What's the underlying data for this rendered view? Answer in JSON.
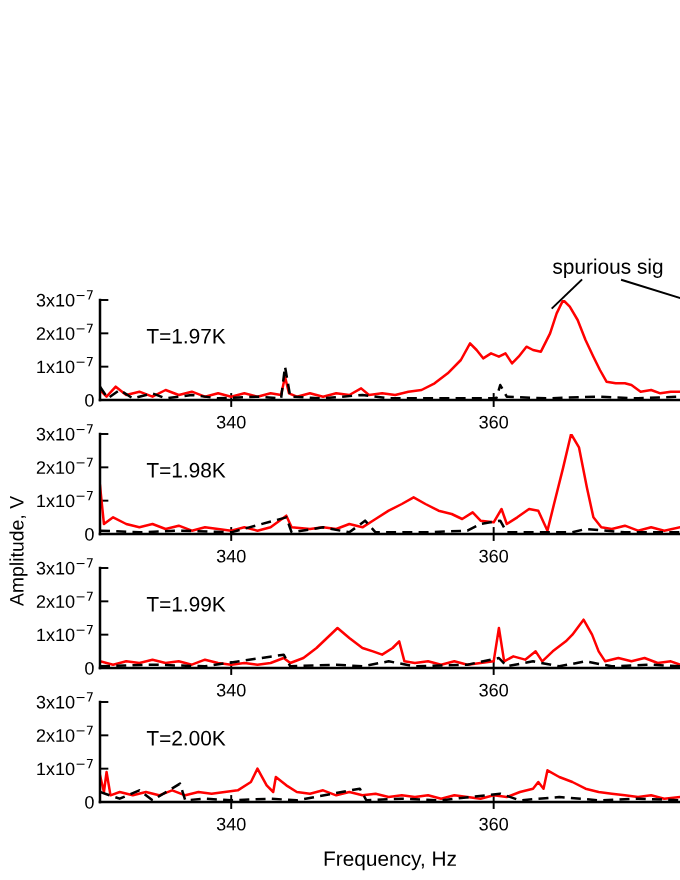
{
  "chart_data": [
    {
      "type": "line",
      "xlim": [
        330,
        374.2
      ],
      "ylim": [
        0,
        3e-07
      ],
      "xticks": [
        340,
        360
      ],
      "yticks": [
        {
          "value": 0,
          "label": "0"
        },
        {
          "value": 1e-07,
          "label": "1x10$^{−7}$"
        },
        {
          "value": 2e-07,
          "label": "2x10$^{−7}$"
        },
        {
          "value": 3e-07,
          "label": "3x10$^{−7}$"
        }
      ],
      "grid": false,
      "annotations": [
        "T=1.97K",
        "spurious sig"
      ],
      "series": [
        {
          "color": "#ff0000",
          "line_style": "solid",
          "x": [
            330,
            330.5,
            331.2,
            332,
            333,
            334,
            335,
            336,
            337,
            338,
            339,
            340,
            341,
            342,
            343,
            343.8,
            344.1,
            344.4,
            345,
            346,
            347,
            348,
            349,
            349.9,
            350.5,
            351.5,
            352.5,
            353.5,
            354.5,
            355.5,
            356.5,
            357.5,
            358.2,
            358.7,
            359.2,
            359.8,
            360.4,
            360.9,
            361.4,
            361.9,
            362.5,
            363,
            363.6,
            364.3,
            364.8,
            365.3,
            365.8,
            366.4,
            367,
            367.6,
            368.1,
            368.6,
            369.3,
            370,
            370.5,
            371.2,
            372,
            372.7,
            373.5,
            374.2
          ],
          "values": [
            3e-08,
            1e-08,
            4e-08,
            1.5e-08,
            2.5e-08,
            1e-08,
            3e-08,
            1.5e-08,
            2.5e-08,
            1e-08,
            2e-08,
            1e-08,
            2e-08,
            1e-08,
            2e-08,
            1.5e-08,
            7e-08,
            2e-08,
            1e-08,
            2e-08,
            1e-08,
            2e-08,
            1.5e-08,
            3.5e-08,
            1.5e-08,
            2e-08,
            1.5e-08,
            2.5e-08,
            3e-08,
            5e-08,
            8e-08,
            1.2e-07,
            1.7e-07,
            1.5e-07,
            1.25e-07,
            1.4e-07,
            1.3e-07,
            1.4e-07,
            1.1e-07,
            1.3e-07,
            1.6e-07,
            1.5e-07,
            1.45e-07,
            2e-07,
            2.6e-07,
            3e-07,
            2.8e-07,
            2.4e-07,
            1.8e-07,
            1.3e-07,
            9e-08,
            5.5e-08,
            5e-08,
            5e-08,
            4.5e-08,
            2.5e-08,
            3e-08,
            2e-08,
            2.5e-08,
            2.5e-08
          ]
        },
        {
          "color": "#000000",
          "line_style": "dashed",
          "x": [
            330,
            330.6,
            331.5,
            332.5,
            334,
            335,
            337,
            339,
            342,
            343.8,
            344.1,
            344.5,
            347,
            350,
            352,
            356,
            360.2,
            360.5,
            361,
            364,
            368,
            371,
            374.2
          ],
          "values": [
            4e-08,
            5e-09,
            3e-08,
            5e-09,
            2e-08,
            5e-09,
            1.5e-08,
            5e-09,
            1e-08,
            5e-09,
            1e-07,
            1e-08,
            5e-09,
            1.5e-08,
            5e-09,
            5e-09,
            5e-09,
            4.5e-08,
            1e-08,
            5e-09,
            1e-08,
            5e-09,
            1e-08
          ]
        }
      ]
    },
    {
      "type": "line",
      "xlim": [
        330,
        374.2
      ],
      "ylim": [
        0,
        3e-07
      ],
      "xticks": [
        340,
        360
      ],
      "yticks": [
        {
          "value": 0,
          "label": "0"
        },
        {
          "value": 1e-07,
          "label": "1x10$^{−7}$"
        },
        {
          "value": 2e-07,
          "label": "2x10$^{−7}$"
        },
        {
          "value": 3e-07,
          "label": "3x10$^{−7}$"
        }
      ],
      "ylabel": "Amplitude, V",
      "grid": false,
      "annotations": [
        "T=1.98K"
      ],
      "series": [
        {
          "color": "#ff0000",
          "line_style": "solid",
          "x": [
            330,
            330.3,
            331,
            332,
            333,
            334,
            335,
            336,
            337,
            338,
            339,
            340,
            341,
            342,
            343,
            344.2,
            344.6,
            346,
            347,
            348,
            349,
            350,
            351,
            352,
            353,
            353.9,
            354.8,
            355.8,
            356.8,
            357.6,
            358.4,
            359,
            360,
            360.6,
            361,
            361.8,
            362.7,
            363.4,
            364.1,
            364.6,
            365.3,
            365.9,
            366.5,
            367.1,
            367.6,
            368.2,
            369,
            370,
            371,
            372,
            373,
            374.2
          ],
          "values": [
            1.45e-07,
            3e-08,
            5e-08,
            3e-08,
            2e-08,
            3e-08,
            1.5e-08,
            2.5e-08,
            1e-08,
            2e-08,
            1.5e-08,
            1e-08,
            2e-08,
            1e-08,
            2e-08,
            5.5e-08,
            2e-08,
            1.5e-08,
            2e-08,
            1.5e-08,
            3e-08,
            2e-08,
            4.5e-08,
            7e-08,
            9e-08,
            1.1e-07,
            9e-08,
            7e-08,
            6e-08,
            4.5e-08,
            6.5e-08,
            4e-08,
            3.5e-08,
            7.5e-08,
            3e-08,
            5e-08,
            7.5e-08,
            7e-08,
            1e-08,
            9e-08,
            2e-07,
            3e-07,
            2.6e-07,
            1.4e-07,
            5e-08,
            2e-08,
            1.5e-08,
            2.5e-08,
            1e-08,
            2e-08,
            1e-08,
            2e-08
          ]
        },
        {
          "color": "#000000",
          "line_style": "dashed",
          "x": [
            330,
            333,
            336,
            340,
            344.2,
            344.6,
            347,
            349,
            350.2,
            351,
            355,
            358,
            359,
            360.5,
            361,
            366,
            367,
            370,
            374.2
          ],
          "values": [
            1e-08,
            5e-09,
            1e-08,
            5e-09,
            5e-08,
            5e-09,
            2e-08,
            5e-09,
            4e-08,
            5e-09,
            5e-09,
            1e-08,
            3e-08,
            4e-08,
            5e-09,
            5e-09,
            1.5e-08,
            5e-09,
            5e-09
          ]
        }
      ]
    },
    {
      "type": "line",
      "xlim": [
        330,
        374.2
      ],
      "ylim": [
        0,
        3e-07
      ],
      "xticks": [
        340,
        360
      ],
      "yticks": [
        {
          "value": 0,
          "label": "0"
        },
        {
          "value": 1e-07,
          "label": "1x10$^{−7}$"
        },
        {
          "value": 2e-07,
          "label": "2x10$^{−7}$"
        },
        {
          "value": 3e-07,
          "label": "3x10$^{−7}$"
        }
      ],
      "grid": false,
      "annotations": [
        "T=1.99K"
      ],
      "series": [
        {
          "color": "#ff0000",
          "line_style": "solid",
          "x": [
            330,
            331,
            332,
            333,
            334,
            335,
            336,
            337,
            338,
            339,
            340,
            341,
            342,
            343,
            344,
            344.5,
            345.5,
            346.5,
            348.1,
            349,
            350,
            350.8,
            351.5,
            352.3,
            352.8,
            353.2,
            354,
            355,
            356,
            357,
            358,
            359,
            360,
            360.4,
            360.8,
            361.5,
            362.4,
            363.2,
            363.7,
            364.5,
            365.5,
            366,
            366.85,
            367.5,
            368,
            368.5,
            369.5,
            370.5,
            371.5,
            372.5,
            373.5,
            374.2
          ],
          "values": [
            2e-08,
            1e-08,
            2e-08,
            1.5e-08,
            2.5e-08,
            1.5e-08,
            2e-08,
            1e-08,
            2.5e-08,
            1.5e-08,
            1e-08,
            1.5e-08,
            1e-08,
            1.5e-08,
            3e-08,
            1.5e-08,
            3e-08,
            6e-08,
            1.2e-07,
            9e-08,
            6e-08,
            5e-08,
            4e-08,
            6e-08,
            8e-08,
            2e-08,
            1.5e-08,
            2e-08,
            1e-08,
            2e-08,
            1e-08,
            1.5e-08,
            2e-08,
            1.2e-07,
            2e-08,
            3.5e-08,
            2.5e-08,
            5e-08,
            2e-08,
            5e-08,
            8e-08,
            1e-07,
            1.45e-07,
            1e-07,
            5e-08,
            2e-08,
            3e-08,
            2e-08,
            3e-08,
            1.5e-08,
            2e-08,
            1e-08
          ]
        },
        {
          "color": "#000000",
          "line_style": "dashed",
          "x": [
            330,
            334,
            338,
            344,
            344.5,
            348,
            350,
            352,
            354,
            358,
            360.4,
            361,
            363,
            365,
            367,
            369,
            372,
            374.2
          ],
          "values": [
            5e-09,
            1e-08,
            5e-09,
            4e-08,
            5e-09,
            1e-08,
            5e-09,
            2e-08,
            5e-09,
            1e-08,
            3e-08,
            5e-09,
            2e-08,
            5e-09,
            2e-08,
            5e-09,
            1e-08,
            5e-09
          ]
        }
      ]
    },
    {
      "type": "line",
      "xlim": [
        330,
        374.2
      ],
      "ylim": [
        0,
        3e-07
      ],
      "xticks": [
        340,
        360
      ],
      "yticks": [
        {
          "value": 0,
          "label": "0"
        },
        {
          "value": 1e-07,
          "label": "1x10$^{−7}$"
        },
        {
          "value": 2e-07,
          "label": "2x10$^{−7}$"
        },
        {
          "value": 3e-07,
          "label": "3x10$^{−7}$"
        }
      ],
      "xlabel": "Frequency, Hz",
      "grid": false,
      "annotations": [
        "T=2.00K"
      ],
      "series": [
        {
          "color": "#ff0000",
          "line_style": "solid",
          "x": [
            330,
            330.3,
            330.5,
            330.8,
            331.5,
            332.5,
            333.5,
            334.5,
            335.5,
            336.5,
            337.5,
            338.5,
            339.5,
            340.5,
            341.5,
            342,
            342.7,
            343.2,
            343.4,
            344.2,
            345,
            346,
            347,
            348,
            349,
            350,
            351,
            352,
            353,
            354,
            355,
            356,
            357,
            358,
            359,
            360,
            361,
            362,
            363,
            363.4,
            363.8,
            364.1,
            365,
            366,
            367,
            368,
            369,
            370,
            371,
            372,
            373,
            374.2
          ],
          "values": [
            8e-08,
            3e-08,
            9e-08,
            2e-08,
            3e-08,
            2e-08,
            3e-08,
            2e-08,
            3.5e-08,
            2e-08,
            3e-08,
            2.5e-08,
            3e-08,
            3.5e-08,
            6e-08,
            1e-07,
            5e-08,
            3e-08,
            7.5e-08,
            5e-08,
            3e-08,
            2.5e-08,
            3.5e-08,
            2e-08,
            3e-08,
            2e-08,
            2.5e-08,
            1.5e-08,
            2e-08,
            1.5e-08,
            2e-08,
            1e-08,
            2e-08,
            1.5e-08,
            1e-08,
            2e-08,
            1.5e-08,
            3e-08,
            4e-08,
            6e-08,
            4e-08,
            9.5e-08,
            7.5e-08,
            6e-08,
            4e-08,
            3e-08,
            2.5e-08,
            2e-08,
            1.5e-08,
            2e-08,
            1e-08,
            1.5e-08
          ]
        },
        {
          "color": "#000000",
          "line_style": "dashed",
          "x": [
            330,
            331.5,
            333,
            334,
            336.1,
            336.5,
            338,
            340,
            343,
            345,
            349.8,
            350.3,
            353,
            356,
            360.5,
            362,
            365,
            368,
            371,
            374.2
          ],
          "values": [
            3e-08,
            1e-08,
            3.5e-08,
            5e-09,
            5.5e-08,
            5e-09,
            1e-08,
            5e-09,
            1e-08,
            5e-09,
            4e-08,
            5e-09,
            1e-08,
            5e-09,
            2.5e-08,
            5e-09,
            1.5e-08,
            5e-09,
            1e-08,
            5e-09
          ]
        }
      ]
    }
  ]
}
